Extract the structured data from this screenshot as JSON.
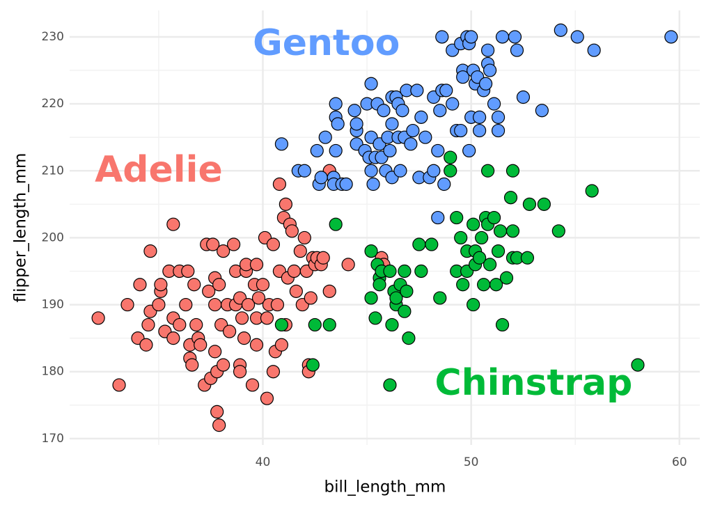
{
  "chart_data": {
    "type": "scatter",
    "x_label": "bill_length_mm",
    "y_label": "flipper_length_mm",
    "xlim": [
      30.725,
      60.975
    ],
    "ylim": [
      169.05,
      233.95
    ],
    "xticks": [
      40,
      50,
      60
    ],
    "yticks": [
      170,
      180,
      190,
      200,
      210,
      220,
      230
    ],
    "grid": true,
    "series": [
      {
        "name": "Adelie",
        "color": "#F8766D",
        "x": [
          32.1,
          33.1,
          33.5,
          34.1,
          34.0,
          34.4,
          34.5,
          34.6,
          34.6,
          35.0,
          35.1,
          35.1,
          35.3,
          35.5,
          35.7,
          35.7,
          35.7,
          36.0,
          36.0,
          36.3,
          36.4,
          36.5,
          36.5,
          36.6,
          36.7,
          36.8,
          36.9,
          37.0,
          37.2,
          37.3,
          37.4,
          37.5,
          37.6,
          37.7,
          37.7,
          37.7,
          37.8,
          37.9,
          37.9,
          37.8,
          38.0,
          38.1,
          38.1,
          38.3,
          38.4,
          38.6,
          38.7,
          38.7,
          38.9,
          38.9,
          38.9,
          39.0,
          39.1,
          39.2,
          39.2,
          39.3,
          39.5,
          39.6,
          39.7,
          39.7,
          39.7,
          39.8,
          40.0,
          40.1,
          40.2,
          40.2,
          40.3,
          40.5,
          40.5,
          40.6,
          40.7,
          40.8,
          40.8,
          40.9,
          41.0,
          41.1,
          41.1,
          41.2,
          41.3,
          41.4,
          41.5,
          41.6,
          41.8,
          41.9,
          42.0,
          42.1,
          42.2,
          42.2,
          42.3,
          42.4,
          42.5,
          42.6,
          42.8,
          42.9,
          43.2,
          43.2,
          44.1,
          45.7,
          45.8
        ],
        "y": [
          188,
          178,
          190,
          193,
          185,
          184,
          187,
          198,
          189,
          190,
          192,
          193,
          186,
          195,
          202,
          188,
          185,
          195,
          187,
          190,
          195,
          184,
          182,
          181,
          193,
          187,
          185,
          184,
          178,
          199,
          192,
          179,
          199,
          194,
          190,
          183,
          174,
          172,
          193,
          180,
          187,
          198,
          181,
          190,
          186,
          199,
          190,
          195,
          191,
          181,
          180,
          188,
          185,
          195,
          196,
          190,
          178,
          193,
          196,
          188,
          184,
          191,
          193,
          200,
          176,
          188,
          190,
          180,
          199,
          183,
          190,
          195,
          208,
          184,
          203,
          205,
          187,
          194,
          202,
          201,
          195,
          192,
          198,
          190,
          200,
          195,
          181,
          180,
          191,
          197,
          196,
          197,
          196,
          197,
          192,
          210,
          196,
          197,
          196
        ]
      },
      {
        "name": "Gentoo",
        "color": "#619CFF",
        "x": [
          40.9,
          41.7,
          42.0,
          42.6,
          42.7,
          42.8,
          43.0,
          43.4,
          43.4,
          43.5,
          43.5,
          43.5,
          43.6,
          43.8,
          44.0,
          44.4,
          44.5,
          44.5,
          44.5,
          44.9,
          45.0,
          45.1,
          45.2,
          45.2,
          45.2,
          45.3,
          45.4,
          45.5,
          45.6,
          45.7,
          45.8,
          45.9,
          46.0,
          46.1,
          46.2,
          46.2,
          46.2,
          46.4,
          46.5,
          46.5,
          46.6,
          46.7,
          46.8,
          46.9,
          47.1,
          47.2,
          47.4,
          47.5,
          47.6,
          47.8,
          48.0,
          48.2,
          48.2,
          48.4,
          48.4,
          48.5,
          48.6,
          48.6,
          48.7,
          48.8,
          49.1,
          49.1,
          49.3,
          49.5,
          49.5,
          49.6,
          49.6,
          49.8,
          49.9,
          49.9,
          50.0,
          50.0,
          50.1,
          50.2,
          50.3,
          50.4,
          50.4,
          50.6,
          50.7,
          50.8,
          50.8,
          50.9,
          51.1,
          51.3,
          51.3,
          51.5,
          52.1,
          52.2,
          52.5,
          53.4,
          54.3,
          55.1,
          55.9,
          59.6
        ],
        "y": [
          214,
          210,
          210,
          213,
          208,
          209,
          215,
          209,
          208,
          218,
          213,
          220,
          217,
          208,
          208,
          219,
          216,
          217,
          214,
          213,
          220,
          212,
          223,
          215,
          210,
          208,
          212,
          220,
          214,
          212,
          219,
          210,
          215,
          213,
          221,
          217,
          209,
          221,
          220,
          215,
          210,
          219,
          215,
          222,
          214,
          216,
          222,
          209,
          218,
          215,
          209,
          210,
          221,
          203,
          213,
          219,
          222,
          230,
          208,
          222,
          228,
          220,
          216,
          216,
          229,
          225,
          224,
          230,
          229,
          213,
          218,
          230,
          225,
          223,
          224,
          218,
          216,
          222,
          223,
          226,
          228,
          225,
          220,
          218,
          216,
          230,
          230,
          228,
          221,
          219,
          231,
          230,
          228,
          230
        ]
      },
      {
        "name": "Chinstrap",
        "color": "#00BA38",
        "x": [
          40.9,
          42.4,
          42.5,
          43.2,
          43.5,
          45.2,
          45.2,
          45.4,
          45.5,
          45.6,
          45.6,
          45.7,
          46.1,
          46.2,
          46.1,
          46.3,
          46.4,
          46.4,
          46.6,
          46.8,
          46.8,
          46.9,
          47.0,
          47.5,
          47.6,
          48.1,
          48.5,
          49.0,
          49.0,
          49.3,
          49.3,
          49.5,
          49.6,
          49.8,
          49.8,
          50.1,
          50.1,
          50.2,
          50.2,
          50.4,
          50.5,
          50.6,
          50.7,
          50.8,
          50.8,
          50.9,
          51.1,
          51.2,
          51.3,
          51.4,
          51.5,
          51.7,
          51.9,
          52.0,
          52.0,
          52.0,
          52.2,
          52.7,
          52.8,
          53.5,
          54.2,
          55.8,
          58.0
        ],
        "y": [
          187,
          181,
          187,
          187,
          202,
          198,
          191,
          188,
          196,
          194,
          193,
          195,
          178,
          187,
          195,
          192,
          190,
          191,
          193,
          195,
          189,
          192,
          185,
          199,
          195,
          199,
          191,
          212,
          210,
          203,
          195,
          200,
          193,
          198,
          195,
          190,
          202,
          196,
          198,
          197,
          200,
          193,
          203,
          210,
          202,
          196,
          203,
          193,
          198,
          201,
          187,
          194,
          206,
          197,
          210,
          201,
          197,
          197,
          205,
          205,
          201,
          207,
          181
        ]
      }
    ],
    "annotations": [
      {
        "text": "Gentoo",
        "x": 43.05,
        "y": 228.75,
        "color": "#619CFF"
      },
      {
        "text": "Adelie",
        "x": 35.0,
        "y": 209.8,
        "color": "#F8766D"
      },
      {
        "text": "Chinstrap",
        "x": 53.0,
        "y": 178.0,
        "color": "#00BA38"
      }
    ]
  }
}
